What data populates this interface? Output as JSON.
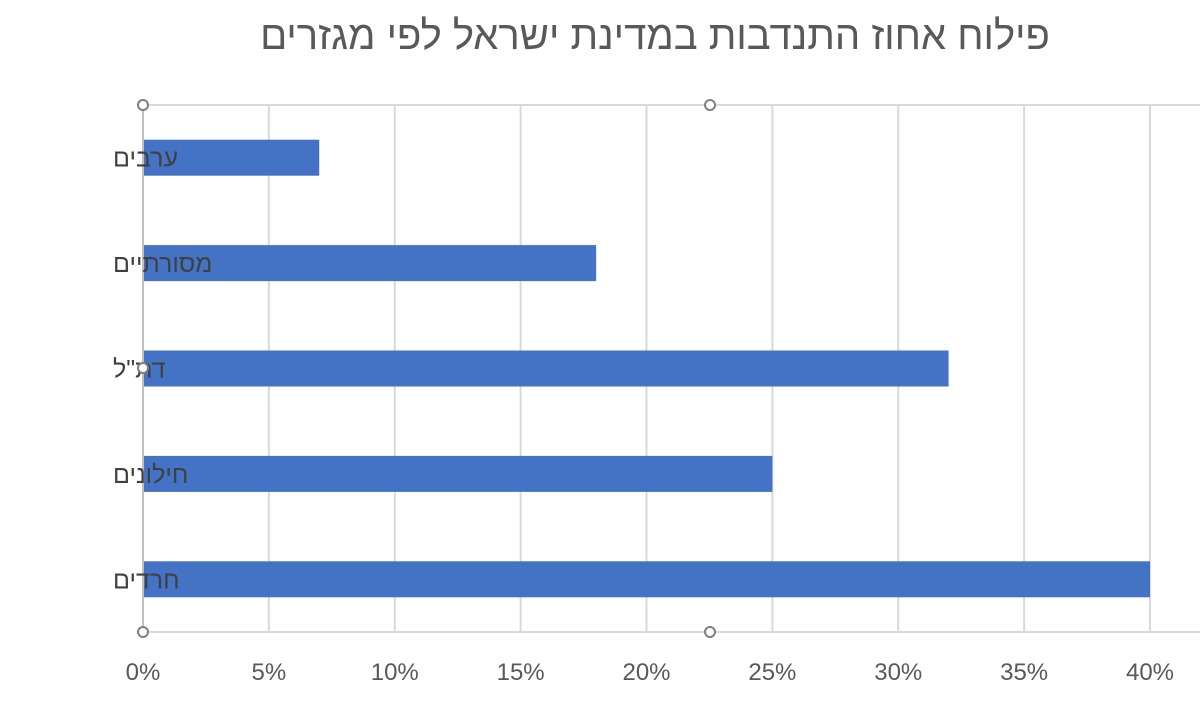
{
  "chart_data": {
    "type": "bar",
    "orientation": "horizontal",
    "title": "פילוח אחוז התנדבות במדינת ישראל לפי מגזרים",
    "categories": [
      "ערבים",
      "מסורתיים",
      "דת\"ל",
      "חילונים",
      "חרדים"
    ],
    "values": [
      7,
      18,
      32,
      25,
      40
    ],
    "value_format": "percent",
    "xlim": [
      0,
      40
    ],
    "xticks": [
      "0%",
      "5%",
      "10%",
      "15%",
      "20%",
      "25%",
      "30%",
      "35%",
      "40%"
    ],
    "grid": "vertical",
    "bar_color": "#4472C4",
    "grid_color": "#D9D9D9"
  }
}
